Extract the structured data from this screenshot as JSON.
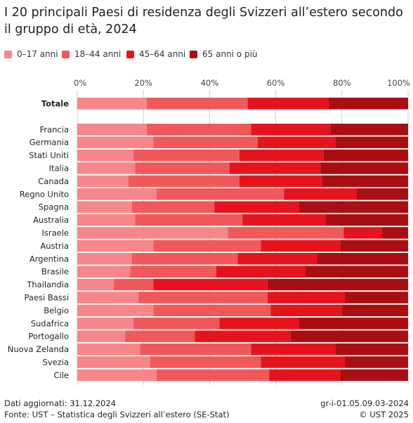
{
  "title": "I 20 principali Paesi di residenza degli Svizzeri all’estero secondo il gruppo di età, 2024",
  "footer": {
    "updated": "Dati aggiornati: 31.12.2024",
    "source": "Fonte: UST – Statistica degli Svizzeri all’estero (SE-Stat)",
    "code": "gr-i-01.05.09.03-2024",
    "copyright": "© UST 2025"
  },
  "colors": [
    "#f7868a",
    "#f0585a",
    "#e5141c",
    "#a80e12"
  ],
  "chart_data": {
    "type": "bar",
    "orientation": "horizontal",
    "stacked": true,
    "title": "I 20 principali Paesi di residenza degli Svizzeri all’estero secondo il gruppo di età, 2024",
    "xlim": [
      0,
      100
    ],
    "x_ticks": [
      "0%",
      "20%",
      "40%",
      "60%",
      "80%",
      "100%"
    ],
    "grid": true,
    "legend_position": "top",
    "total_category": "Totale",
    "categories": [
      "Totale",
      "Francia",
      "Germania",
      "Stati Uniti",
      "Italia",
      "Canada",
      "Regno Unito",
      "Spagna",
      "Australia",
      "Israele",
      "Austria",
      "Argentina",
      "Brasile",
      "Thailandia",
      "Paesi Bassi",
      "Belgio",
      "Sudafrica",
      "Portogallo",
      "Nuova Zelanda",
      "Svezia",
      "Cile"
    ],
    "series": [
      {
        "name": "0–17 anni",
        "values": [
          21,
          21,
          23,
          17,
          17.5,
          15.5,
          24,
          16.5,
          17.5,
          45.5,
          23,
          16.5,
          16,
          11,
          18.5,
          23,
          17,
          14.5,
          19,
          22,
          24
        ]
      },
      {
        "name": "18–44 anni",
        "values": [
          30.5,
          31.5,
          31.5,
          32,
          28.5,
          33.5,
          38.5,
          25,
          32.5,
          35,
          32.5,
          32,
          26,
          12,
          39,
          35.5,
          26,
          21,
          33.5,
          33.5,
          34
        ]
      },
      {
        "name": "45–64 anni",
        "values": [
          24.5,
          24,
          23.5,
          25.5,
          27.5,
          25,
          22,
          25.5,
          25,
          11.5,
          24,
          24,
          27,
          34.5,
          23.5,
          21.5,
          24,
          29,
          25.5,
          25.5,
          21.5
        ]
      },
      {
        "name": "65 anni o più",
        "values": [
          24,
          23.5,
          22,
          25.5,
          26.5,
          26,
          15.5,
          33,
          25,
          8,
          20.5,
          27.5,
          31,
          42.5,
          19,
          20,
          33,
          35.5,
          22,
          19,
          20.5
        ]
      }
    ]
  }
}
